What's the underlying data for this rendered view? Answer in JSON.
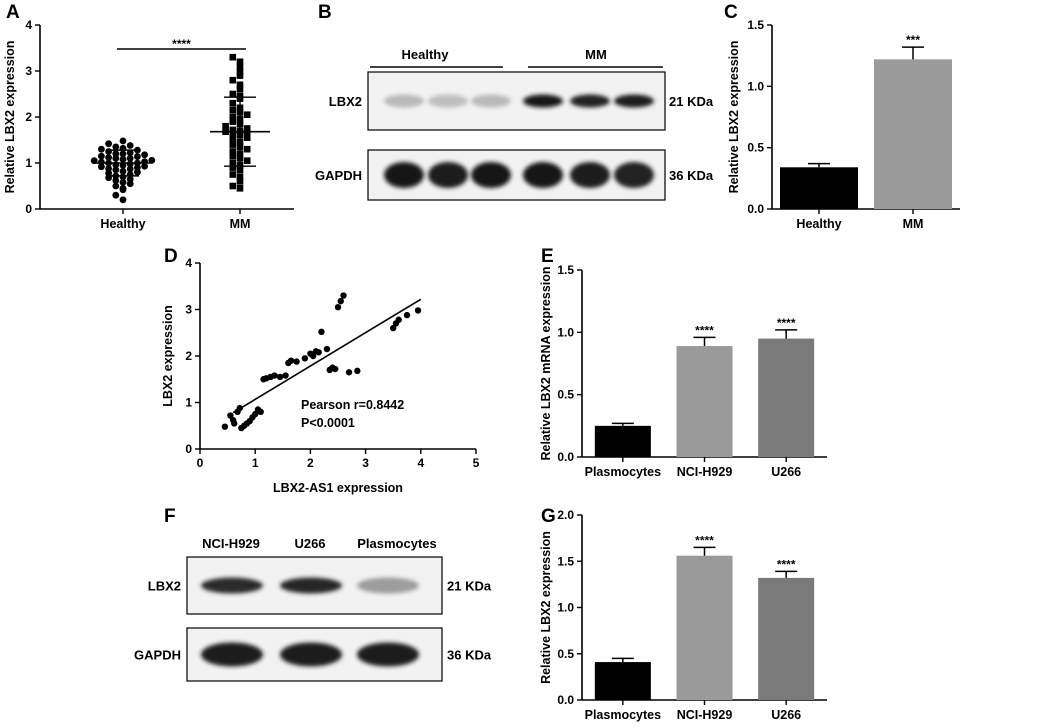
{
  "chart_data": [
    {
      "panel": "A",
      "type": "scatter",
      "categories": [
        "Healthy",
        "MM"
      ],
      "ylabel": "Relative LBX2 expression",
      "ylim": [
        0,
        4
      ],
      "yticks": [
        "0",
        "1",
        "2",
        "3",
        "4"
      ],
      "significance": "****",
      "groups": [
        {
          "name": "Healthy",
          "marker": "circle",
          "mean": 1.0,
          "sd": 0.28,
          "values": [
            0.2,
            0.3,
            0.42,
            0.45,
            0.5,
            0.55,
            0.58,
            0.62,
            0.65,
            0.68,
            0.7,
            0.72,
            0.75,
            0.78,
            0.8,
            0.82,
            0.85,
            0.87,
            0.88,
            0.9,
            0.92,
            0.93,
            0.95,
            0.96,
            0.98,
            1.0,
            1.0,
            1.02,
            1.03,
            1.05,
            1.06,
            1.08,
            1.1,
            1.1,
            1.12,
            1.14,
            1.15,
            1.18,
            1.2,
            1.2,
            1.22,
            1.25,
            1.28,
            1.3,
            1.32,
            1.35,
            1.38,
            1.42,
            1.48
          ]
        },
        {
          "name": "MM",
          "marker": "square",
          "mean": 1.68,
          "sd": 0.75,
          "values": [
            0.45,
            0.5,
            0.6,
            0.7,
            0.75,
            0.85,
            0.9,
            0.95,
            1.0,
            1.05,
            1.1,
            1.15,
            1.2,
            1.25,
            1.3,
            1.35,
            1.4,
            1.45,
            1.5,
            1.55,
            1.6,
            1.62,
            1.65,
            1.68,
            1.7,
            1.72,
            1.75,
            1.8,
            1.85,
            1.9,
            1.95,
            2.0,
            2.05,
            2.1,
            2.15,
            2.2,
            2.3,
            2.4,
            2.45,
            2.5,
            2.6,
            2.7,
            2.8,
            2.9,
            3.0,
            3.1,
            3.2,
            3.3
          ]
        }
      ]
    },
    {
      "panel": "C",
      "type": "bar",
      "categories": [
        "Healthy",
        "MM"
      ],
      "values": [
        0.34,
        1.22
      ],
      "errors": [
        0.03,
        0.1
      ],
      "colors": [
        "#000000",
        "#9a9a9a"
      ],
      "significance": [
        "",
        "***"
      ],
      "ylabel": "Relative LBX2 expression",
      "ylim": [
        0,
        1.5
      ],
      "yticks": [
        "0.0",
        "0.5",
        "1.0",
        "1.5"
      ]
    },
    {
      "panel": "D",
      "type": "scatter",
      "xlabel": "LBX2-AS1 expression",
      "ylabel": "LBX2 expression",
      "xlim": [
        0,
        5
      ],
      "ylim": [
        0,
        4
      ],
      "xticks": [
        "0",
        "1",
        "2",
        "3",
        "4",
        "5"
      ],
      "yticks": [
        "0",
        "1",
        "2",
        "3",
        "4"
      ],
      "annotation": [
        "Pearson r=0.8442",
        "P<0.0001"
      ],
      "fit_line": [
        [
          0.6,
          0.78
        ],
        [
          4.0,
          3.22
        ]
      ],
      "x": [
        0.45,
        0.55,
        0.6,
        0.62,
        0.68,
        0.72,
        0.75,
        0.8,
        0.85,
        0.9,
        0.95,
        1.0,
        1.05,
        1.1,
        1.15,
        1.2,
        1.28,
        1.35,
        1.45,
        1.55,
        1.6,
        1.65,
        1.75,
        1.9,
        2.0,
        2.05,
        2.1,
        2.15,
        2.2,
        2.3,
        2.35,
        2.4,
        2.45,
        2.5,
        2.55,
        2.6,
        2.7,
        2.85,
        3.5,
        3.55,
        3.6,
        3.75,
        3.95
      ],
      "y": [
        0.48,
        0.72,
        0.62,
        0.55,
        0.8,
        0.88,
        0.45,
        0.5,
        0.55,
        0.6,
        0.68,
        0.75,
        0.85,
        0.8,
        1.5,
        1.52,
        1.55,
        1.58,
        1.55,
        1.58,
        1.85,
        1.9,
        1.88,
        1.95,
        2.05,
        2.0,
        2.1,
        2.08,
        2.52,
        2.15,
        1.7,
        1.75,
        1.72,
        3.05,
        3.18,
        3.3,
        1.65,
        1.68,
        2.6,
        2.7,
        2.78,
        2.88,
        2.98
      ]
    },
    {
      "panel": "E",
      "type": "bar",
      "categories": [
        "Plasmocytes",
        "NCI-H929",
        "U266"
      ],
      "values": [
        0.25,
        0.89,
        0.95
      ],
      "errors": [
        0.02,
        0.07,
        0.07
      ],
      "colors": [
        "#000000",
        "#9a9a9a",
        "#7a7a7a"
      ],
      "significance": [
        "",
        "****",
        "****"
      ],
      "ylabel": "Relative LBX2 mRNA expression",
      "ylim": [
        0,
        1.5
      ],
      "yticks": [
        "0.0",
        "0.5",
        "1.0",
        "1.5"
      ]
    },
    {
      "panel": "G",
      "type": "bar",
      "categories": [
        "Plasmocytes",
        "NCI-H929",
        "U266"
      ],
      "values": [
        0.41,
        1.56,
        1.32
      ],
      "errors": [
        0.04,
        0.09,
        0.07
      ],
      "colors": [
        "#000000",
        "#9a9a9a",
        "#7a7a7a"
      ],
      "significance": [
        "",
        "****",
        "****"
      ],
      "ylabel": "Relative LBX2 expression",
      "ylim": [
        0,
        2.0
      ],
      "yticks": [
        "0.0",
        "0.5",
        "1.0",
        "1.5",
        "2.0"
      ]
    }
  ],
  "panels": {
    "A": "A",
    "B": "B",
    "C": "C",
    "D": "D",
    "E": "E",
    "F": "F",
    "G": "G"
  },
  "blot_b": {
    "groups": [
      "Healthy",
      "MM"
    ],
    "rows": [
      {
        "protein": "LBX2",
        "size": "21 KDa",
        "intensity": [
          0.22,
          0.2,
          0.22,
          0.95,
          0.9,
          0.92
        ]
      },
      {
        "protein": "GAPDH",
        "size": "36 KDa",
        "intensity": [
          0.95,
          0.92,
          0.95,
          0.95,
          0.92,
          0.9
        ]
      }
    ]
  },
  "blot_f": {
    "lanes": [
      "NCI-H929",
      "U266",
      "Plasmocytes"
    ],
    "rows": [
      {
        "protein": "LBX2",
        "size": "21 KDa",
        "intensity": [
          0.85,
          0.88,
          0.35
        ]
      },
      {
        "protein": "GAPDH",
        "size": "36 KDa",
        "intensity": [
          0.92,
          0.92,
          0.92
        ]
      }
    ]
  }
}
